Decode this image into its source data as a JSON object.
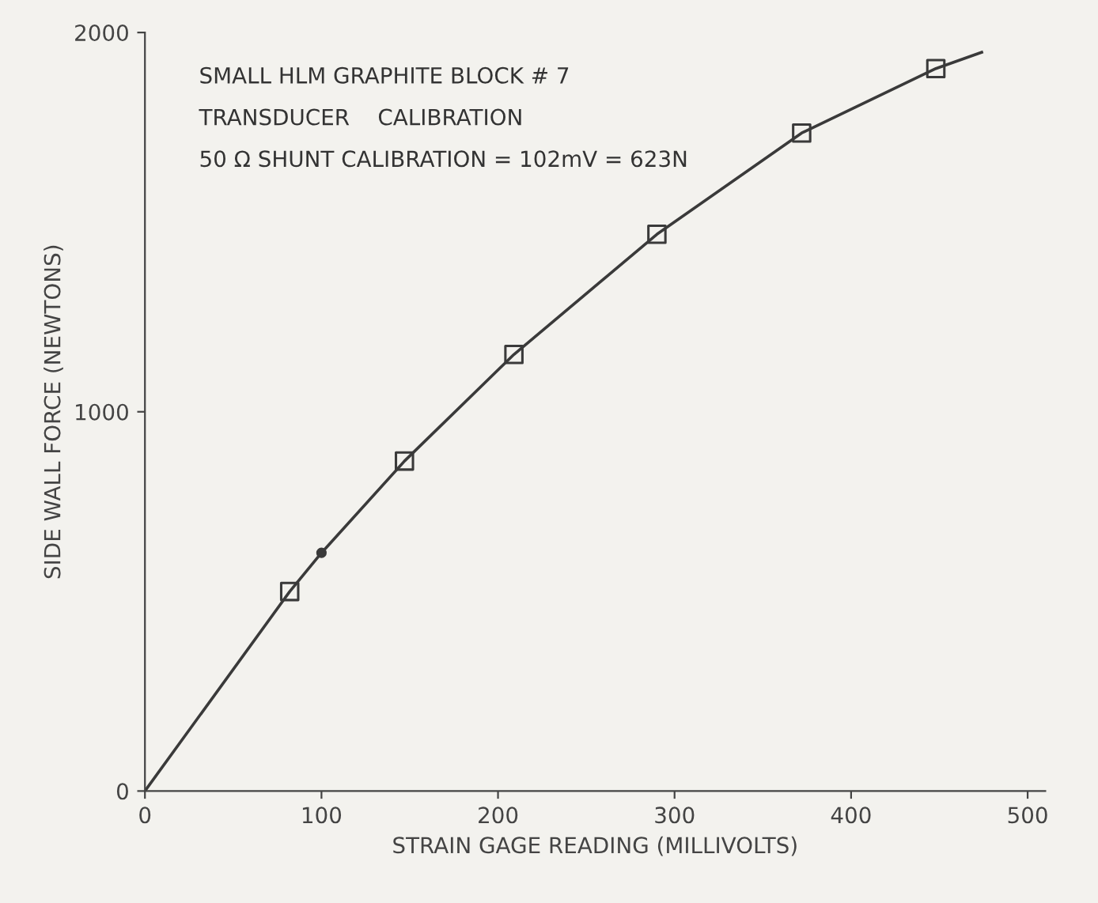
{
  "chart_data": {
    "type": "line",
    "xlabel": "STRAIN GAGE READING (MILLIVOLTS)",
    "ylabel": "SIDE WALL FORCE (NEWTONS)",
    "annotations": [
      "SMALL HLM GRAPHITE BLOCK # 7",
      "TRANSDUCER    CALIBRATION",
      "50 Ω SHUNT CALIBRATION = 102mV = 623N"
    ],
    "series": [
      {
        "color": "#3a3a3a",
        "marker": "none",
        "x": [
          0,
          82,
          100,
          147,
          209,
          290,
          372,
          448,
          474
        ],
        "values": [
          0,
          526,
          628,
          870,
          1151,
          1468,
          1735,
          1905,
          1948
        ]
      },
      {
        "type": "scatter",
        "color": "#3a3a3a",
        "marker": "square",
        "x": [
          82,
          147,
          209,
          290,
          372,
          448
        ],
        "values": [
          526,
          870,
          1151,
          1468,
          1735,
          1905
        ]
      },
      {
        "type": "scatter",
        "color": "#3a3a3a",
        "marker": "circle",
        "x": [
          100
        ],
        "values": [
          628
        ]
      }
    ],
    "xlim": [
      0,
      510
    ],
    "ylim": [
      0,
      2000
    ],
    "xticks": [
      0,
      100,
      200,
      300,
      400,
      500
    ],
    "yticks": [
      0,
      1000,
      2000
    ],
    "grid": false,
    "legend": false
  }
}
